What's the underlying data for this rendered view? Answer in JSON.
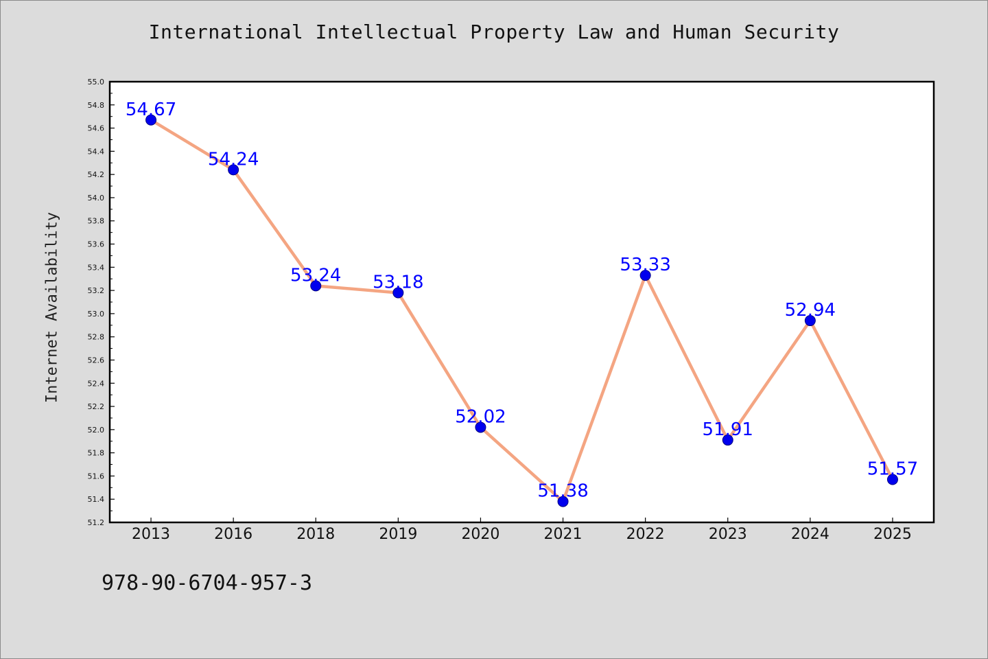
{
  "footer_code": "978-90-6704-957-3",
  "colors": {
    "background": "#dcdcdc",
    "plot_background": "#ffffff",
    "line": "#f4a582",
    "marker": "#0000ee",
    "data_label": "#0000ff"
  },
  "chart_data": {
    "type": "line",
    "title": "International Intellectual Property Law and Human Security",
    "xlabel": "",
    "ylabel": "Internet Availability",
    "categories": [
      "2013",
      "2016",
      "2018",
      "2019",
      "2020",
      "2021",
      "2022",
      "2023",
      "2024",
      "2025"
    ],
    "series": [
      {
        "values": [
          54.67,
          54.24,
          53.24,
          53.18,
          52.02,
          51.38,
          53.33,
          51.91,
          52.94,
          51.57
        ],
        "labels": [
          "54.67",
          "54.24",
          "53.24",
          "53.18",
          "52.02",
          "51.38",
          "53.33",
          "51.91",
          "52.94",
          "51.57"
        ]
      }
    ],
    "ylim": [
      51.2,
      55.0
    ],
    "y_ticks": [
      "51.2",
      "51.4",
      "51.6",
      "51.8",
      "52.0",
      "52.2",
      "52.4",
      "52.6",
      "52.8",
      "53.0",
      "53.2",
      "53.4",
      "53.6",
      "53.8",
      "54.0",
      "54.2",
      "54.4",
      "54.6",
      "54.8",
      "55.0"
    ],
    "grid": false,
    "legend": "none",
    "markers": "circle"
  }
}
